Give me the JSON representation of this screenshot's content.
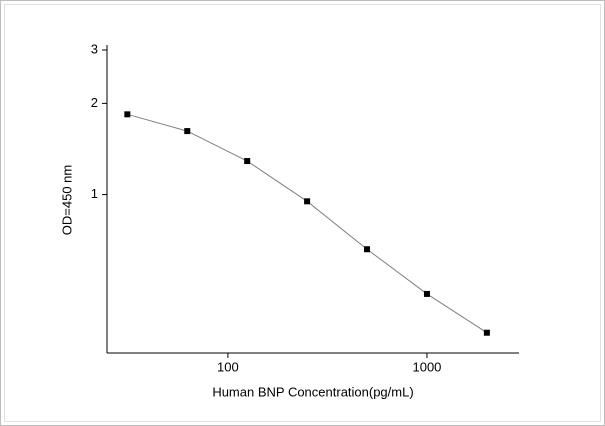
{
  "chart_data": {
    "type": "line",
    "x_label": "Human BNP  Concentration(pg/mL)",
    "y_label": "OD=450 nm",
    "x": [
      31.25,
      62.5,
      125,
      250,
      500,
      1000,
      2000
    ],
    "series": [
      {
        "color": "#000000",
        "values": [
          1.84,
          1.62,
          1.29,
          0.95,
          0.66,
          0.47,
          0.35
        ]
      }
    ],
    "line_color": "#808080",
    "xlim": [
      24.7,
      2900
    ],
    "ylim": [
      0.3,
      3
    ],
    "xticks": [
      100,
      1000
    ],
    "yticks": [
      1,
      2,
      3
    ],
    "xscale": "log",
    "yscale": "log"
  }
}
